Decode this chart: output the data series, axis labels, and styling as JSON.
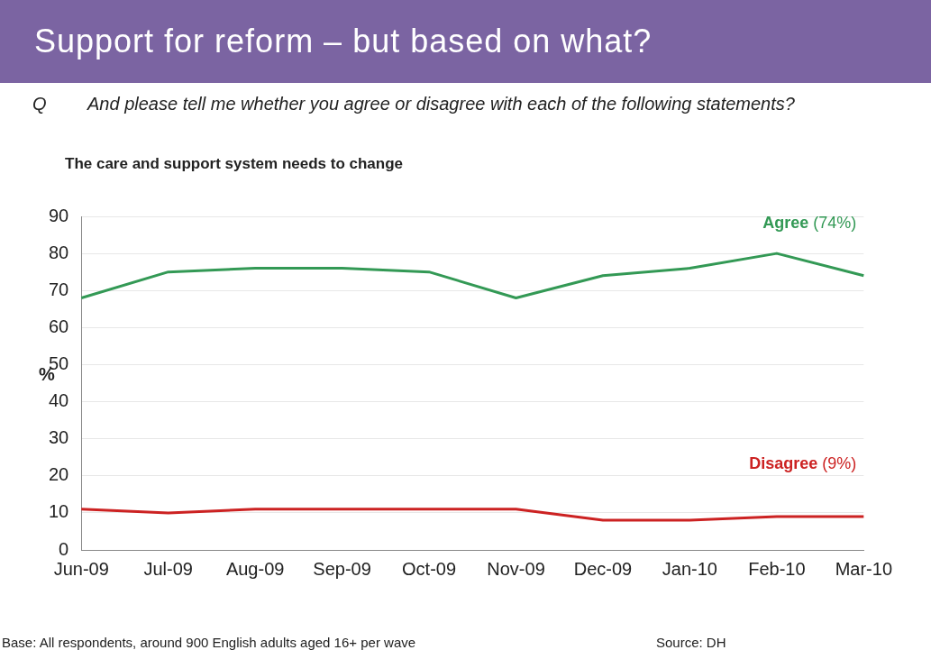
{
  "chart_data": {
    "type": "line",
    "title": "Support for reform – but based on what?",
    "subtitle": "And please tell me whether you agree or disagree with each of the following statements?",
    "ylabel": "%",
    "categories": [
      "Jun-09",
      "Jul-09",
      "Aug-09",
      "Sep-09",
      "Oct-09",
      "Nov-09",
      "Dec-09",
      "Jan-10",
      "Feb-10",
      "Mar-10"
    ],
    "series": [
      {
        "name": "Agree",
        "color": "#339955",
        "values": [
          68,
          75,
          76,
          76,
          75,
          68,
          74,
          76,
          80,
          74
        ]
      },
      {
        "name": "Disagree",
        "color": "#cc2222",
        "values": [
          11,
          10,
          11,
          11,
          11,
          11,
          8,
          8,
          9,
          9
        ]
      }
    ],
    "ylim": [
      0,
      90
    ],
    "yticks": [
      0,
      10,
      20,
      30,
      40,
      50,
      60,
      70,
      80,
      90
    ],
    "grid": "y",
    "legend": false,
    "marker": "none",
    "line_style": "solid",
    "annotations": [
      "Q",
      "The care and support system needs to change",
      {
        "text": "(74%)",
        "x": "Mar-10",
        "y": 74
      },
      {
        "text": "(9%)",
        "x": "Mar-10",
        "y": 9
      },
      "Base: All respondents, around 900 English adults aged 16+ per wave",
      "Source: DH"
    ]
  }
}
